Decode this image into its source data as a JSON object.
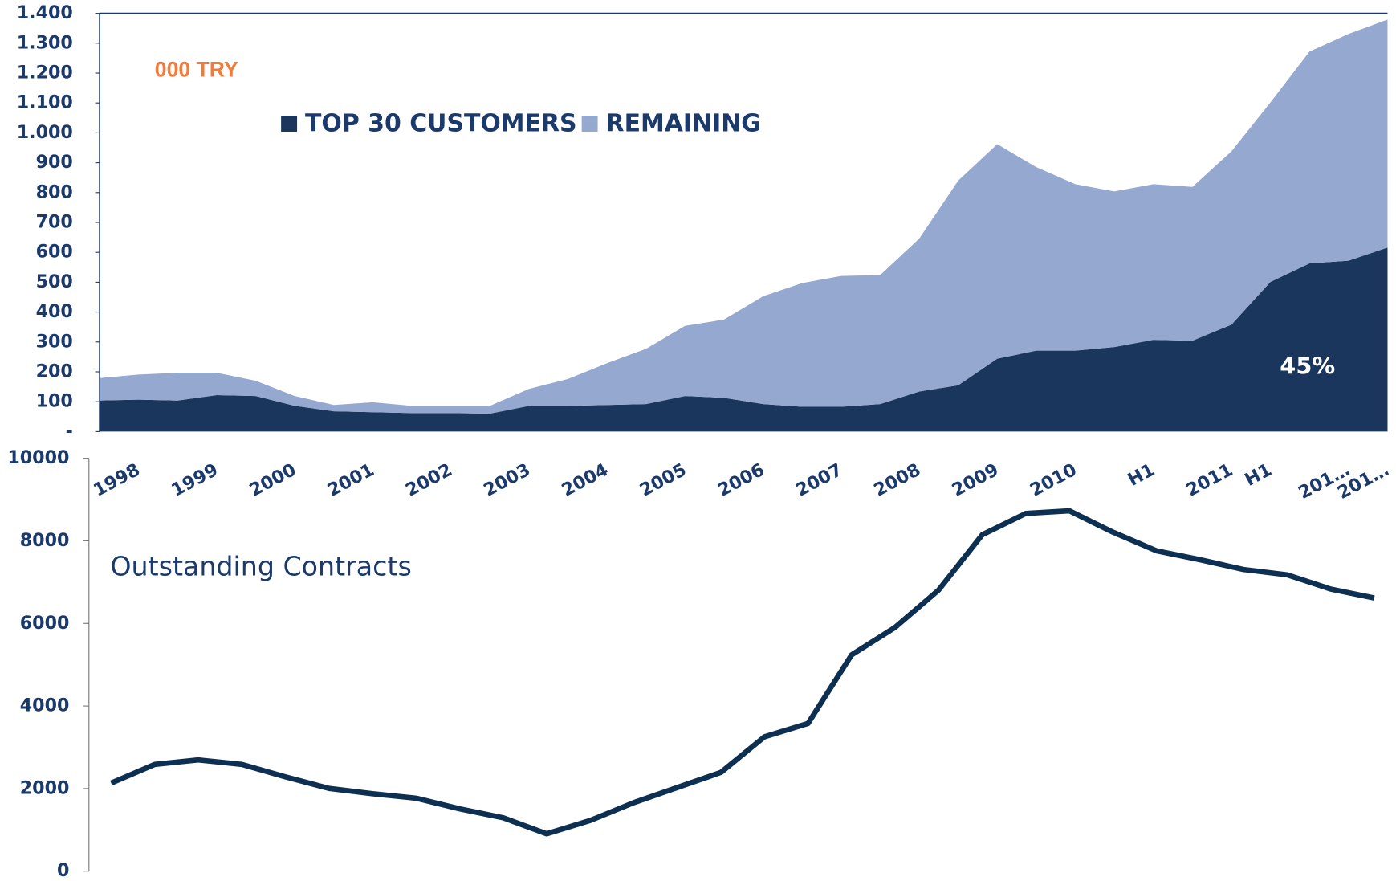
{
  "chart_data": [
    {
      "type": "area",
      "stacked": true,
      "unit_label": "000 TRY",
      "annotation": "45%",
      "categories": [
        "1998",
        null,
        "1999",
        null,
        "2000",
        null,
        "2001",
        null,
        "2002",
        null,
        "2003",
        null,
        "2004",
        null,
        "2005",
        null,
        "2006",
        null,
        "2007",
        null,
        "2008",
        null,
        "2009",
        null,
        "2010",
        null,
        "H1",
        null,
        "2011",
        "H1",
        null,
        "201…",
        "201…",
        null
      ],
      "series": [
        {
          "name": "TOP 30 CUSTOMERS",
          "color": "#1b365d",
          "values": [
            104,
            107,
            104,
            122,
            119,
            86,
            68,
            65,
            62,
            62,
            60,
            86,
            86,
            89,
            92,
            119,
            113,
            92,
            83,
            83,
            92,
            134,
            155,
            244,
            271,
            271,
            283,
            307,
            304,
            358,
            501,
            563,
            572,
            616
          ]
        },
        {
          "name": "REMAINING",
          "color": "#95a9d0",
          "values": [
            75,
            84,
            93,
            75,
            51,
            33,
            21,
            33,
            24,
            24,
            26,
            57,
            90,
            140,
            185,
            235,
            262,
            361,
            414,
            438,
            432,
            512,
            685,
            718,
            614,
            557,
            521,
            521,
            515,
            580,
            601,
            709,
            759,
            763
          ]
        }
      ],
      "ylim": [
        0,
        1400
      ],
      "yticks": [
        {
          "value": 0,
          "label": "-"
        },
        100,
        200,
        300,
        400,
        500,
        600,
        700,
        800,
        900,
        {
          "value": 1000,
          "label": "1.000"
        },
        {
          "value": 1100,
          "label": "1.100"
        },
        {
          "value": 1200,
          "label": "1.200"
        },
        {
          "value": 1300,
          "label": "1.300"
        },
        {
          "value": 1400,
          "label": "1.400"
        }
      ],
      "legend": "top-left"
    },
    {
      "type": "line",
      "title": "Outstanding Contracts",
      "color": "#0d2f52",
      "values": [
        2134,
        2586,
        2694,
        2586,
        2284,
        2004,
        1875,
        1767,
        1509,
        1293,
        905,
        1228,
        1659,
        2026,
        2392,
        3254,
        3578,
        5237,
        5905,
        6810,
        8147,
        8664,
        8728,
        8211,
        7759,
        7543,
        7306,
        7177,
        6832,
        6616
      ],
      "ylim": [
        0,
        10000
      ],
      "yticks": [
        0,
        2000,
        4000,
        6000,
        8000,
        10000
      ]
    }
  ]
}
